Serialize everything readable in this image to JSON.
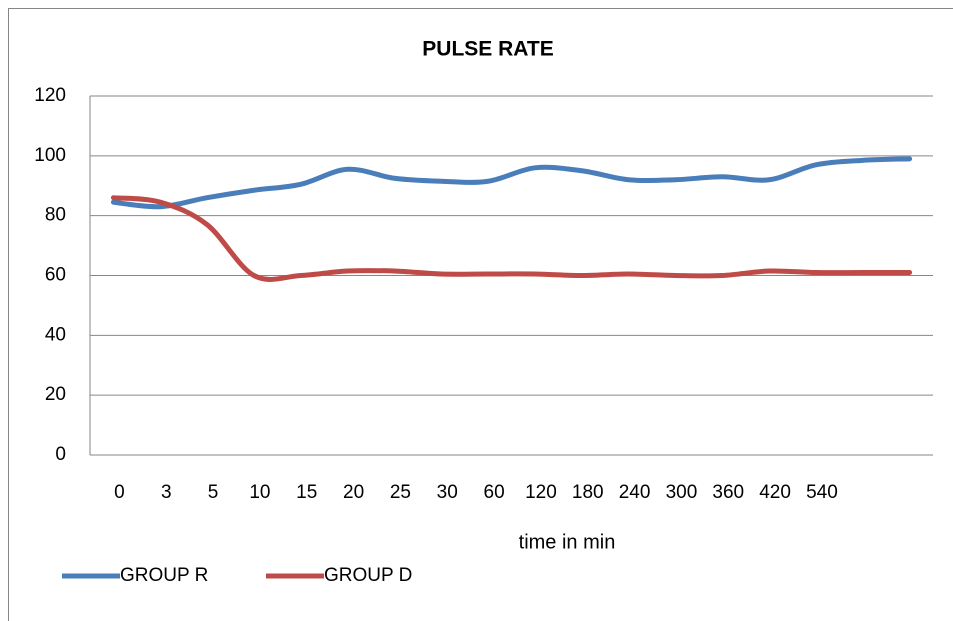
{
  "chart_data": {
    "type": "line",
    "title": "PULSE RATE",
    "x_label": "time in min",
    "categories": [
      "0",
      "3",
      "5",
      "10",
      "15",
      "20",
      "25",
      "30",
      "60",
      "120",
      "180",
      "240",
      "300",
      "360",
      "420",
      "540",
      null,
      null
    ],
    "series": [
      {
        "name": "GROUP R",
        "color": "#4a7ebb",
        "values": [
          84.5,
          83,
          86,
          88.5,
          90.5,
          95.5,
          92.5,
          91.5,
          91.5,
          96,
          95,
          92,
          92,
          93,
          92,
          97,
          98.5,
          99
        ]
      },
      {
        "name": "GROUP D",
        "color": "#be4b48",
        "values": [
          86,
          84.5,
          77,
          60,
          60,
          61.5,
          61.5,
          60.5,
          60.5,
          60.5,
          60,
          60.5,
          60,
          60,
          61.5,
          61,
          61,
          61
        ]
      }
    ],
    "ylim": [
      0,
      120
    ],
    "yticks": [
      0,
      20,
      40,
      60,
      80,
      100,
      120
    ],
    "grid": true,
    "legend": "bottom-left"
  }
}
